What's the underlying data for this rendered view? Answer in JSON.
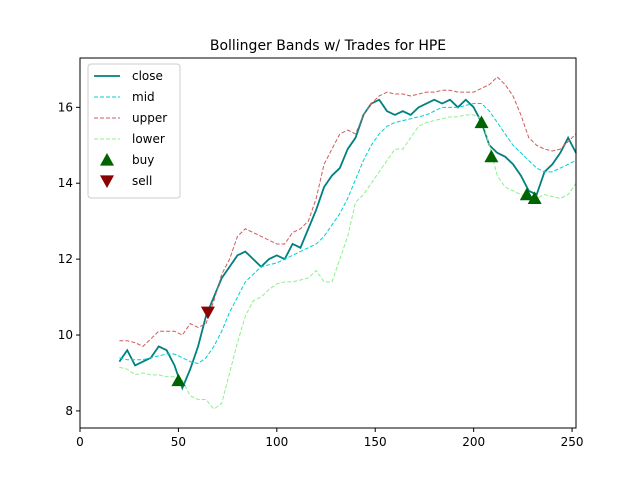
{
  "chart_data": {
    "type": "line",
    "title": "Bollinger Bands w/ Trades for HPE",
    "x": [
      20,
      24,
      28,
      32,
      36,
      40,
      44,
      48,
      52,
      56,
      60,
      64,
      68,
      72,
      76,
      80,
      84,
      88,
      92,
      96,
      100,
      104,
      108,
      112,
      116,
      120,
      124,
      128,
      132,
      136,
      140,
      144,
      148,
      152,
      156,
      160,
      164,
      168,
      172,
      176,
      180,
      184,
      188,
      192,
      196,
      200,
      204,
      208,
      212,
      216,
      220,
      224,
      228,
      232,
      236,
      240,
      244,
      248,
      252
    ],
    "series": [
      {
        "name": "close",
        "color": "#008080",
        "linestyle": "solid",
        "values": [
          9.3,
          9.6,
          9.2,
          9.3,
          9.4,
          9.7,
          9.6,
          9.2,
          8.6,
          9.1,
          9.7,
          10.5,
          11.0,
          11.5,
          11.8,
          12.1,
          12.2,
          12.0,
          11.8,
          12.0,
          12.1,
          12.0,
          12.4,
          12.3,
          12.8,
          13.3,
          13.9,
          14.2,
          14.4,
          14.9,
          15.2,
          15.8,
          16.1,
          16.2,
          15.9,
          15.8,
          15.9,
          15.8,
          16.0,
          16.1,
          16.2,
          16.1,
          16.2,
          16.0,
          16.2,
          16.0,
          15.6,
          15.0,
          14.8,
          14.7,
          14.5,
          14.2,
          13.8,
          13.7,
          14.3,
          14.5,
          14.8,
          15.2,
          14.8
        ]
      },
      {
        "name": "mid",
        "color": "#00ced1",
        "linestyle": "dashed",
        "values": [
          9.4,
          9.35,
          9.35,
          9.35,
          9.4,
          9.45,
          9.5,
          9.5,
          9.4,
          9.3,
          9.25,
          9.4,
          9.7,
          10.1,
          10.6,
          11.0,
          11.4,
          11.6,
          11.8,
          11.85,
          11.9,
          12.0,
          12.1,
          12.2,
          12.3,
          12.4,
          12.6,
          12.9,
          13.2,
          13.6,
          14.1,
          14.6,
          15.0,
          15.3,
          15.5,
          15.6,
          15.65,
          15.7,
          15.75,
          15.8,
          15.9,
          16.0,
          16.0,
          16.0,
          16.05,
          16.1,
          16.1,
          15.9,
          15.6,
          15.3,
          15.0,
          14.8,
          14.6,
          14.4,
          14.3,
          14.3,
          14.4,
          14.5,
          14.6
        ]
      },
      {
        "name": "upper",
        "color": "#cd5c5c",
        "linestyle": "dashed",
        "values": [
          9.85,
          9.85,
          9.8,
          9.7,
          9.9,
          10.1,
          10.1,
          10.1,
          10.0,
          10.3,
          10.2,
          10.3,
          10.9,
          11.6,
          12.0,
          12.6,
          12.8,
          12.7,
          12.6,
          12.5,
          12.4,
          12.4,
          12.7,
          12.8,
          13.0,
          13.6,
          14.5,
          14.9,
          15.3,
          15.4,
          15.3,
          15.8,
          16.1,
          16.3,
          16.4,
          16.35,
          16.35,
          16.3,
          16.35,
          16.4,
          16.4,
          16.45,
          16.45,
          16.4,
          16.4,
          16.4,
          16.5,
          16.6,
          16.8,
          16.6,
          16.3,
          15.8,
          15.2,
          15.0,
          14.9,
          14.85,
          14.9,
          15.1,
          15.3
        ]
      },
      {
        "name": "lower",
        "color": "#90ee90",
        "linestyle": "dashed",
        "values": [
          9.15,
          9.1,
          8.95,
          9.0,
          8.95,
          8.95,
          8.9,
          8.9,
          8.8,
          8.4,
          8.3,
          8.3,
          8.05,
          8.2,
          9.0,
          9.8,
          10.5,
          10.9,
          11.0,
          11.2,
          11.35,
          11.4,
          11.4,
          11.45,
          11.5,
          11.7,
          11.4,
          11.4,
          12.0,
          12.6,
          13.5,
          13.7,
          14.0,
          14.3,
          14.6,
          14.9,
          14.9,
          15.2,
          15.5,
          15.6,
          15.65,
          15.7,
          15.75,
          15.75,
          15.8,
          15.8,
          15.7,
          15.0,
          14.2,
          13.9,
          13.8,
          13.7,
          13.6,
          13.6,
          13.7,
          13.65,
          13.6,
          13.7,
          14.0
        ]
      },
      {
        "name": "buy",
        "color": "#006400",
        "marker": "triangle-up",
        "x": [
          50,
          204,
          209,
          227,
          231
        ],
        "values": [
          8.8,
          15.6,
          14.7,
          13.7,
          13.6
        ]
      },
      {
        "name": "sell",
        "color": "#8b0000",
        "marker": "triangle-down",
        "x": [
          65
        ],
        "values": [
          10.6
        ]
      }
    ],
    "xlim": [
      0,
      252
    ],
    "ylim": [
      7.55,
      17.3
    ],
    "xticks": [
      0,
      50,
      100,
      150,
      200,
      250
    ],
    "yticks": [
      8,
      10,
      12,
      14,
      16
    ],
    "legend": "upper left"
  }
}
